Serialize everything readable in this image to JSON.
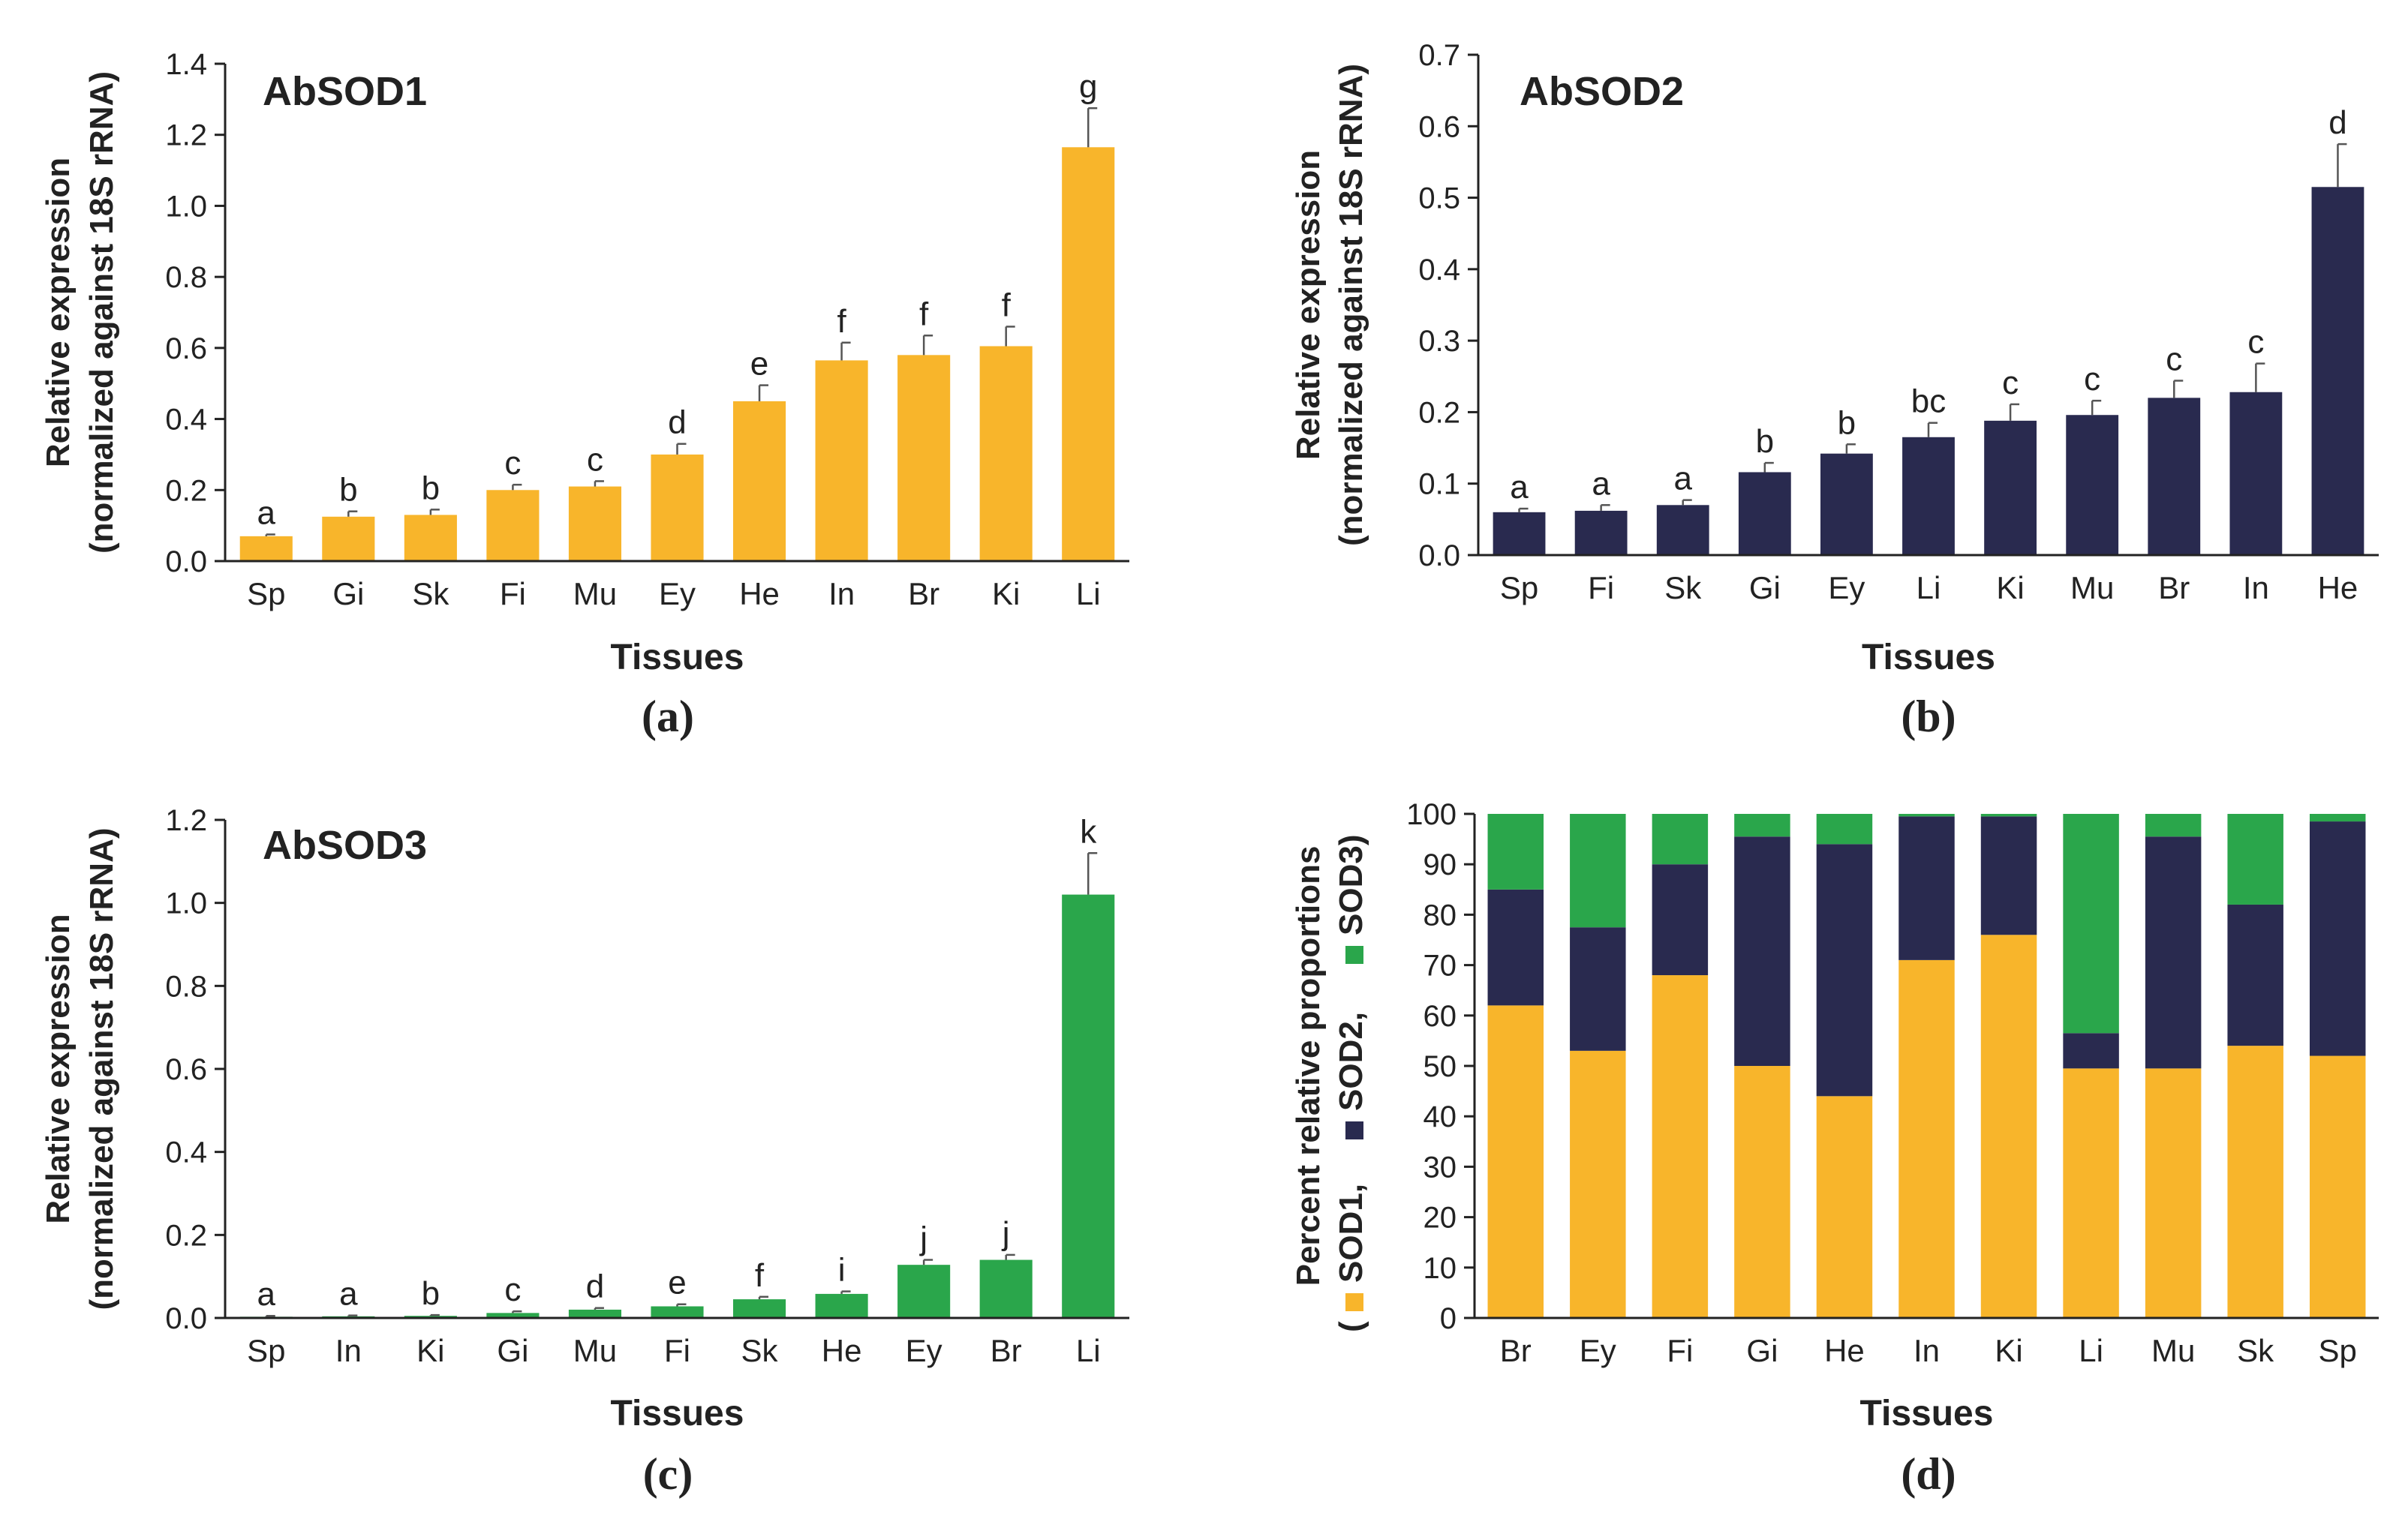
{
  "chart_data": [
    {
      "id": "a",
      "type": "bar",
      "panel_label": "(a)",
      "title": "AbSOD1",
      "xlabel": "Tissues",
      "ylabel_line1": "Relative expression",
      "ylabel_line2": "(normalized against 18S rRNA)",
      "ylim": [
        0,
        1.4
      ],
      "yticks": [
        "0.0",
        "0.2",
        "0.4",
        "0.6",
        "0.8",
        "1.0",
        "1.2",
        "1.4"
      ],
      "color": "#F8B52B",
      "categories": [
        "Sp",
        "Gi",
        "Sk",
        "Fi",
        "Mu",
        "Ey",
        "He",
        "In",
        "Br",
        "Ki",
        "Li"
      ],
      "values": [
        0.07,
        0.125,
        0.13,
        0.2,
        0.21,
        0.3,
        0.45,
        0.565,
        0.58,
        0.605,
        1.165
      ],
      "errors": [
        0.005,
        0.015,
        0.015,
        0.015,
        0.015,
        0.03,
        0.045,
        0.05,
        0.055,
        0.055,
        0.11
      ],
      "letters": [
        "a",
        "b",
        "b",
        "c",
        "c",
        "d",
        "e",
        "f",
        "f",
        "f",
        "g"
      ]
    },
    {
      "id": "b",
      "type": "bar",
      "panel_label": "(b)",
      "title": "AbSOD2",
      "xlabel": "Tissues",
      "ylabel_line1": "Relative expression",
      "ylabel_line2": "(normalized against 18S rRNA)",
      "ylim": [
        0,
        0.7
      ],
      "yticks": [
        "0.0",
        "0.1",
        "0.2",
        "0.3",
        "0.4",
        "0.5",
        "0.6",
        "0.7"
      ],
      "color": "#292A4F",
      "categories": [
        "Sp",
        "Fi",
        "Sk",
        "Gi",
        "Ey",
        "Li",
        "Ki",
        "Mu",
        "Br",
        "In",
        "He"
      ],
      "values": [
        0.06,
        0.062,
        0.07,
        0.116,
        0.142,
        0.165,
        0.188,
        0.196,
        0.22,
        0.228,
        0.515
      ],
      "errors": [
        0.005,
        0.008,
        0.007,
        0.013,
        0.013,
        0.02,
        0.023,
        0.02,
        0.024,
        0.04,
        0.06
      ],
      "letters": [
        "a",
        "a",
        "a",
        "b",
        "b",
        "bc",
        "c",
        "c",
        "c",
        "c",
        "d"
      ]
    },
    {
      "id": "c",
      "type": "bar",
      "panel_label": "(c)",
      "title": "AbSOD3",
      "xlabel": "Tissues",
      "ylabel_line1": "Relative expression",
      "ylabel_line2": "(normalized against 18S rRNA)",
      "ylim": [
        0,
        1.2
      ],
      "yticks": [
        "0.0",
        "0.2",
        "0.4",
        "0.6",
        "0.8",
        "1.0",
        "1.2"
      ],
      "color": "#2AA64B",
      "categories": [
        "Sp",
        "In",
        "Ki",
        "Gi",
        "Mu",
        "Fi",
        "Sk",
        "He",
        "Ey",
        "Br",
        "Li"
      ],
      "values": [
        0.003,
        0.004,
        0.005,
        0.012,
        0.02,
        0.028,
        0.045,
        0.058,
        0.128,
        0.14,
        1.02
      ],
      "errors": [
        0.002,
        0.002,
        0.002,
        0.004,
        0.004,
        0.005,
        0.006,
        0.006,
        0.012,
        0.012,
        0.1
      ],
      "letters": [
        "a",
        "a",
        "b",
        "c",
        "d",
        "e",
        "f",
        "i",
        "j",
        "j",
        "k"
      ]
    },
    {
      "id": "d",
      "type": "stacked_bar",
      "panel_label": "(d)",
      "xlabel": "Tissues",
      "ylabel_line1": "Percent relative proportions",
      "ylabel_line2_parts": [
        "(",
        "SOD1,",
        "SOD2,",
        "SOD3)"
      ],
      "ylim": [
        0,
        100
      ],
      "yticks": [
        "0",
        "10",
        "20",
        "30",
        "40",
        "50",
        "60",
        "70",
        "80",
        "90",
        "100"
      ],
      "categories": [
        "Br",
        "Ey",
        "Fi",
        "Gi",
        "He",
        "In",
        "Ki",
        "Li",
        "Mu",
        "Sk",
        "Sp"
      ],
      "series": [
        {
          "name": "SOD1",
          "color": "#F8B52B",
          "values": [
            62,
            53,
            68,
            50,
            44,
            71,
            76,
            49.5,
            49.5,
            54,
            52
          ]
        },
        {
          "name": "SOD2",
          "color": "#292A4F",
          "values": [
            23,
            24.5,
            22,
            45.5,
            50,
            28.5,
            23.5,
            7,
            46,
            28,
            46.5
          ]
        },
        {
          "name": "SOD3",
          "color": "#2AA64B",
          "values": [
            15,
            22.5,
            10,
            4.5,
            6,
            0.5,
            0.5,
            43.5,
            4.5,
            18,
            1.5
          ]
        }
      ]
    }
  ]
}
